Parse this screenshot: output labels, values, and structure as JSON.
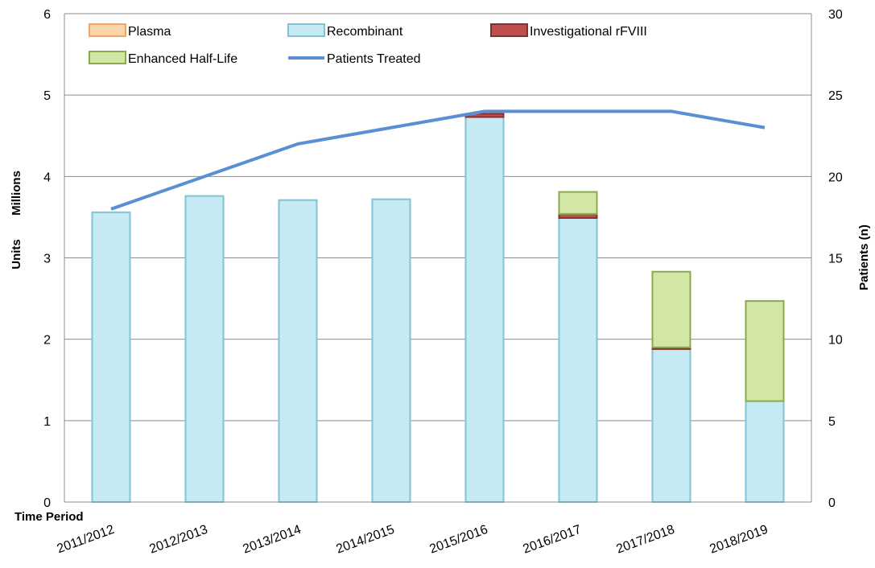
{
  "chart_data": {
    "type": "bar",
    "categories": [
      "2011/2012",
      "2012/2013",
      "2013/2014",
      "2014/2015",
      "2015/2016",
      "2016/2017",
      "2017/2018",
      "2018/2019"
    ],
    "series": [
      {
        "name": "Plasma",
        "kind": "bar",
        "axis": "left",
        "color": "#fbd4a8",
        "stroke": "#f4a460",
        "values": [
          0,
          0,
          0,
          0,
          0,
          0,
          0,
          0
        ]
      },
      {
        "name": "Recombinant",
        "kind": "bar",
        "axis": "left",
        "color": "#c6eaf3",
        "stroke": "#7fc3d6",
        "values": [
          3.56,
          3.76,
          3.71,
          3.72,
          4.73,
          3.49,
          1.88,
          1.24
        ]
      },
      {
        "name": "Investigational rFVIII",
        "kind": "bar",
        "axis": "left",
        "color": "#c0504d",
        "stroke": "#8b2d2a",
        "values": [
          0,
          0,
          0,
          0,
          0.04,
          0.05,
          0.02,
          0
        ]
      },
      {
        "name": "Enhanced Half-Life",
        "kind": "bar",
        "axis": "left",
        "color": "#d2e6a6",
        "stroke": "#8aab4a",
        "values": [
          0,
          0,
          0,
          0,
          0,
          0.27,
          0.93,
          1.23
        ]
      },
      {
        "name": "Patients Treated",
        "kind": "line",
        "axis": "right",
        "color": "#5b8fd4",
        "values": [
          18,
          20,
          22,
          23,
          24,
          24,
          24,
          23
        ]
      }
    ],
    "ylabel_units": "Units",
    "ylabel_millions": "Millions",
    "y2label": "Patients (n)",
    "xlabel": "Time Period",
    "ylim": [
      0,
      6
    ],
    "y2lim": [
      0,
      30
    ],
    "yticks": [
      "0",
      "1",
      "2",
      "3",
      "4",
      "5",
      "6"
    ],
    "y2ticks": [
      "0",
      "5",
      "10",
      "15",
      "20",
      "25",
      "30"
    ],
    "grid": true,
    "legend_position": "top-left"
  }
}
